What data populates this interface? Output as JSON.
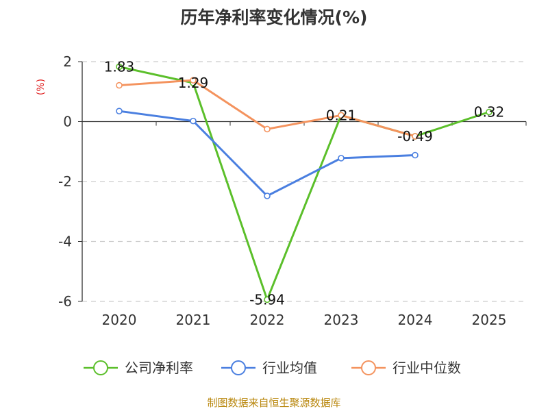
{
  "chart_data": {
    "type": "line",
    "title": "历年净利率变化情况(%)",
    "ylabel": "(%)",
    "xlabel": "",
    "categories": [
      "2020",
      "2021",
      "2022",
      "2023",
      "2024",
      "2025"
    ],
    "ylim": [
      -6,
      2
    ],
    "yticks": [
      2,
      0,
      -2,
      -4,
      -6
    ],
    "grid": true,
    "legend_position": "bottom",
    "series": [
      {
        "name": "公司净利率",
        "color": "#5bbf2a",
        "values": [
          1.83,
          1.29,
          -5.94,
          0.21,
          -0.49,
          0.32
        ],
        "labels": true
      },
      {
        "name": "行业均值",
        "color": "#4a7fe0",
        "values": [
          0.35,
          0.02,
          -2.48,
          -1.22,
          -1.12,
          null
        ],
        "labels": false
      },
      {
        "name": "行业中位数",
        "color": "#f4935e",
        "values": [
          1.21,
          1.38,
          -0.25,
          0.21,
          -0.49,
          null
        ],
        "labels": false
      }
    ]
  },
  "source": "制图数据来自恒生聚源数据库"
}
